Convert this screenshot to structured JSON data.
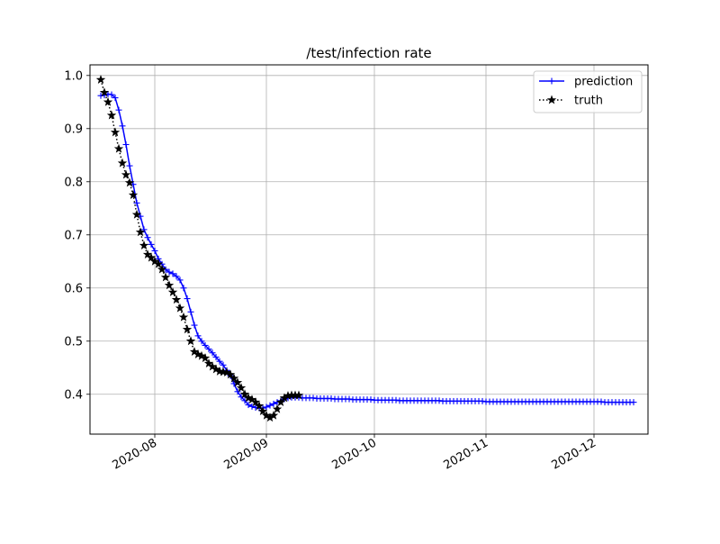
{
  "chart_data": {
    "type": "line",
    "title": "/test/infection rate",
    "xlabel": "",
    "ylabel": "",
    "x_axis": "date",
    "xlim": [
      "2020-07-14",
      "2020-12-16"
    ],
    "ylim": [
      0.325,
      1.02
    ],
    "x_ticks": [
      {
        "date": "2020-08-01",
        "label": "2020-08"
      },
      {
        "date": "2020-09-01",
        "label": "2020-09"
      },
      {
        "date": "2020-10-01",
        "label": "2020-10"
      },
      {
        "date": "2020-11-01",
        "label": "2020-11"
      },
      {
        "date": "2020-12-01",
        "label": "2020-12"
      }
    ],
    "y_ticks": [
      {
        "value": 0.4,
        "label": "0.4"
      },
      {
        "value": 0.5,
        "label": "0.5"
      },
      {
        "value": 0.6,
        "label": "0.6"
      },
      {
        "value": 0.7,
        "label": "0.7"
      },
      {
        "value": 0.8,
        "label": "0.8"
      },
      {
        "value": 0.9,
        "label": "0.9"
      },
      {
        "value": 1.0,
        "label": "1.0"
      }
    ],
    "grid": true,
    "legend_position": "top-right",
    "series": [
      {
        "name": "prediction",
        "color": "#0000ff",
        "line_style": "solid",
        "marker": "plus",
        "points": [
          [
            "2020-07-17",
            0.962
          ],
          [
            "2020-07-18",
            0.963
          ],
          [
            "2020-07-19",
            0.965
          ],
          [
            "2020-07-20",
            0.964
          ],
          [
            "2020-07-21",
            0.958
          ],
          [
            "2020-07-22",
            0.935
          ],
          [
            "2020-07-23",
            0.905
          ],
          [
            "2020-07-24",
            0.87
          ],
          [
            "2020-07-25",
            0.83
          ],
          [
            "2020-07-26",
            0.795
          ],
          [
            "2020-07-27",
            0.76
          ],
          [
            "2020-07-28",
            0.735
          ],
          [
            "2020-07-29",
            0.71
          ],
          [
            "2020-07-30",
            0.695
          ],
          [
            "2020-07-31",
            0.682
          ],
          [
            "2020-08-01",
            0.67
          ],
          [
            "2020-08-02",
            0.655
          ],
          [
            "2020-08-03",
            0.645
          ],
          [
            "2020-08-04",
            0.635
          ],
          [
            "2020-08-05",
            0.63
          ],
          [
            "2020-08-06",
            0.627
          ],
          [
            "2020-08-07",
            0.622
          ],
          [
            "2020-08-08",
            0.615
          ],
          [
            "2020-08-09",
            0.6
          ],
          [
            "2020-08-10",
            0.58
          ],
          [
            "2020-08-11",
            0.555
          ],
          [
            "2020-08-12",
            0.53
          ],
          [
            "2020-08-13",
            0.51
          ],
          [
            "2020-08-14",
            0.5
          ],
          [
            "2020-08-15",
            0.492
          ],
          [
            "2020-08-16",
            0.485
          ],
          [
            "2020-08-17",
            0.478
          ],
          [
            "2020-08-18",
            0.47
          ],
          [
            "2020-08-19",
            0.462
          ],
          [
            "2020-08-20",
            0.455
          ],
          [
            "2020-08-21",
            0.445
          ],
          [
            "2020-08-22",
            0.435
          ],
          [
            "2020-08-23",
            0.42
          ],
          [
            "2020-08-24",
            0.405
          ],
          [
            "2020-08-25",
            0.395
          ],
          [
            "2020-08-26",
            0.388
          ],
          [
            "2020-08-27",
            0.38
          ],
          [
            "2020-08-28",
            0.377
          ],
          [
            "2020-08-29",
            0.375
          ],
          [
            "2020-08-30",
            0.374
          ],
          [
            "2020-08-31",
            0.374
          ],
          [
            "2020-09-01",
            0.376
          ],
          [
            "2020-09-02",
            0.379
          ],
          [
            "2020-09-03",
            0.382
          ],
          [
            "2020-09-04",
            0.385
          ],
          [
            "2020-09-05",
            0.388
          ],
          [
            "2020-09-06",
            0.391
          ],
          [
            "2020-09-07",
            0.393
          ],
          [
            "2020-09-08",
            0.394
          ],
          [
            "2020-09-09",
            0.394
          ],
          [
            "2020-09-10",
            0.394
          ],
          [
            "2020-09-11",
            0.393
          ],
          [
            "2020-09-12",
            0.393
          ],
          [
            "2020-09-13",
            0.393
          ],
          [
            "2020-09-14",
            0.393
          ],
          [
            "2020-09-15",
            0.392
          ],
          [
            "2020-09-16",
            0.392
          ],
          [
            "2020-09-17",
            0.392
          ],
          [
            "2020-09-18",
            0.392
          ],
          [
            "2020-09-19",
            0.392
          ],
          [
            "2020-09-20",
            0.391
          ],
          [
            "2020-09-21",
            0.391
          ],
          [
            "2020-09-22",
            0.391
          ],
          [
            "2020-09-23",
            0.391
          ],
          [
            "2020-09-24",
            0.391
          ],
          [
            "2020-09-25",
            0.39
          ],
          [
            "2020-09-26",
            0.39
          ],
          [
            "2020-09-27",
            0.39
          ],
          [
            "2020-09-28",
            0.39
          ],
          [
            "2020-09-29",
            0.39
          ],
          [
            "2020-09-30",
            0.39
          ],
          [
            "2020-10-01",
            0.389
          ],
          [
            "2020-10-02",
            0.389
          ],
          [
            "2020-10-03",
            0.389
          ],
          [
            "2020-10-04",
            0.389
          ],
          [
            "2020-10-05",
            0.389
          ],
          [
            "2020-10-06",
            0.389
          ],
          [
            "2020-10-07",
            0.389
          ],
          [
            "2020-10-08",
            0.388
          ],
          [
            "2020-10-09",
            0.388
          ],
          [
            "2020-10-10",
            0.388
          ],
          [
            "2020-10-11",
            0.388
          ],
          [
            "2020-10-12",
            0.388
          ],
          [
            "2020-10-13",
            0.388
          ],
          [
            "2020-10-14",
            0.388
          ],
          [
            "2020-10-15",
            0.388
          ],
          [
            "2020-10-16",
            0.388
          ],
          [
            "2020-10-17",
            0.388
          ],
          [
            "2020-10-18",
            0.388
          ],
          [
            "2020-10-19",
            0.388
          ],
          [
            "2020-10-20",
            0.387
          ],
          [
            "2020-10-21",
            0.387
          ],
          [
            "2020-10-22",
            0.387
          ],
          [
            "2020-10-23",
            0.387
          ],
          [
            "2020-10-24",
            0.387
          ],
          [
            "2020-10-25",
            0.387
          ],
          [
            "2020-10-26",
            0.387
          ],
          [
            "2020-10-27",
            0.387
          ],
          [
            "2020-10-28",
            0.387
          ],
          [
            "2020-10-29",
            0.387
          ],
          [
            "2020-10-30",
            0.387
          ],
          [
            "2020-10-31",
            0.387
          ],
          [
            "2020-11-01",
            0.386
          ],
          [
            "2020-11-02",
            0.386
          ],
          [
            "2020-11-03",
            0.386
          ],
          [
            "2020-11-04",
            0.386
          ],
          [
            "2020-11-05",
            0.386
          ],
          [
            "2020-11-06",
            0.386
          ],
          [
            "2020-11-07",
            0.386
          ],
          [
            "2020-11-08",
            0.386
          ],
          [
            "2020-11-09",
            0.386
          ],
          [
            "2020-11-10",
            0.386
          ],
          [
            "2020-11-11",
            0.386
          ],
          [
            "2020-11-12",
            0.386
          ],
          [
            "2020-11-13",
            0.386
          ],
          [
            "2020-11-14",
            0.386
          ],
          [
            "2020-11-15",
            0.386
          ],
          [
            "2020-11-16",
            0.386
          ],
          [
            "2020-11-17",
            0.386
          ],
          [
            "2020-11-18",
            0.386
          ],
          [
            "2020-11-19",
            0.386
          ],
          [
            "2020-11-20",
            0.386
          ],
          [
            "2020-11-21",
            0.386
          ],
          [
            "2020-11-22",
            0.386
          ],
          [
            "2020-11-23",
            0.386
          ],
          [
            "2020-11-24",
            0.386
          ],
          [
            "2020-11-25",
            0.386
          ],
          [
            "2020-11-26",
            0.386
          ],
          [
            "2020-11-27",
            0.386
          ],
          [
            "2020-11-28",
            0.386
          ],
          [
            "2020-11-29",
            0.386
          ],
          [
            "2020-11-30",
            0.386
          ],
          [
            "2020-12-01",
            0.386
          ],
          [
            "2020-12-02",
            0.386
          ],
          [
            "2020-12-03",
            0.386
          ],
          [
            "2020-12-04",
            0.385
          ],
          [
            "2020-12-05",
            0.385
          ],
          [
            "2020-12-06",
            0.385
          ],
          [
            "2020-12-07",
            0.385
          ],
          [
            "2020-12-08",
            0.385
          ],
          [
            "2020-12-09",
            0.385
          ],
          [
            "2020-12-10",
            0.385
          ],
          [
            "2020-12-11",
            0.385
          ],
          [
            "2020-12-12",
            0.385
          ]
        ]
      },
      {
        "name": "truth",
        "color": "#000000",
        "line_style": "dotted",
        "marker": "star",
        "points": [
          [
            "2020-07-17",
            0.992
          ],
          [
            "2020-07-18",
            0.968
          ],
          [
            "2020-07-19",
            0.95
          ],
          [
            "2020-07-20",
            0.925
          ],
          [
            "2020-07-21",
            0.893
          ],
          [
            "2020-07-22",
            0.862
          ],
          [
            "2020-07-23",
            0.835
          ],
          [
            "2020-07-24",
            0.813
          ],
          [
            "2020-07-25",
            0.798
          ],
          [
            "2020-07-26",
            0.775
          ],
          [
            "2020-07-27",
            0.738
          ],
          [
            "2020-07-28",
            0.705
          ],
          [
            "2020-07-29",
            0.68
          ],
          [
            "2020-07-30",
            0.663
          ],
          [
            "2020-07-31",
            0.657
          ],
          [
            "2020-08-01",
            0.65
          ],
          [
            "2020-08-02",
            0.645
          ],
          [
            "2020-08-03",
            0.635
          ],
          [
            "2020-08-04",
            0.62
          ],
          [
            "2020-08-05",
            0.605
          ],
          [
            "2020-08-06",
            0.592
          ],
          [
            "2020-08-07",
            0.578
          ],
          [
            "2020-08-08",
            0.562
          ],
          [
            "2020-08-09",
            0.545
          ],
          [
            "2020-08-10",
            0.522
          ],
          [
            "2020-08-11",
            0.5
          ],
          [
            "2020-08-12",
            0.48
          ],
          [
            "2020-08-13",
            0.475
          ],
          [
            "2020-08-14",
            0.472
          ],
          [
            "2020-08-15",
            0.468
          ],
          [
            "2020-08-16",
            0.458
          ],
          [
            "2020-08-17",
            0.452
          ],
          [
            "2020-08-18",
            0.447
          ],
          [
            "2020-08-19",
            0.443
          ],
          [
            "2020-08-20",
            0.442
          ],
          [
            "2020-08-21",
            0.441
          ],
          [
            "2020-08-22",
            0.437
          ],
          [
            "2020-08-23",
            0.43
          ],
          [
            "2020-08-24",
            0.422
          ],
          [
            "2020-08-25",
            0.412
          ],
          [
            "2020-08-26",
            0.4
          ],
          [
            "2020-08-27",
            0.393
          ],
          [
            "2020-08-28",
            0.39
          ],
          [
            "2020-08-29",
            0.385
          ],
          [
            "2020-08-30",
            0.378
          ],
          [
            "2020-08-31",
            0.368
          ],
          [
            "2020-09-01",
            0.36
          ],
          [
            "2020-09-02",
            0.356
          ],
          [
            "2020-09-03",
            0.36
          ],
          [
            "2020-09-04",
            0.372
          ],
          [
            "2020-09-05",
            0.385
          ],
          [
            "2020-09-06",
            0.393
          ],
          [
            "2020-09-07",
            0.397
          ],
          [
            "2020-09-08",
            0.398
          ],
          [
            "2020-09-09",
            0.398
          ],
          [
            "2020-09-10",
            0.398
          ]
        ]
      }
    ]
  }
}
